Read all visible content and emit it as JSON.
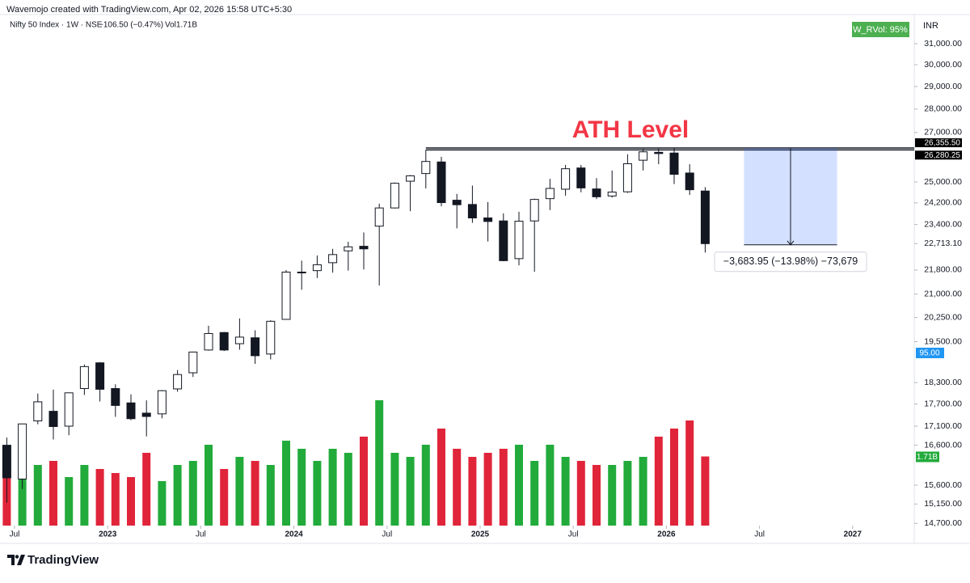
{
  "header": {
    "credit": "Wavemojo created with TradingView.com, Apr 02, 2026 15:58 UTC+5:30",
    "symbol": "Nifty 50 Index · 1W · NSE",
    "change": "−106.50 (−0.47%)",
    "volume": "Vol1.71B",
    "currency": "INR",
    "indicator": "W_RVol: 95%",
    "indicator_tag": "95.00",
    "volume_tag": "1.71B"
  },
  "footer": {
    "brand": "TradingView"
  },
  "chart_data": {
    "type": "candlestick",
    "log_scale": true,
    "up_color": "#ffffff",
    "down_color": "#131722",
    "wick_color": "#131722",
    "volume_up_color": "#22ab3b",
    "volume_down_color": "#e0253a",
    "x": [
      "2022-06",
      "2022-07",
      "2022-08",
      "2022-09",
      "2022-10",
      "2022-11",
      "2022-12",
      "2023-01",
      "2023-02",
      "2023-03",
      "2023-04",
      "2023-05",
      "2023-06",
      "2023-07",
      "2023-08",
      "2023-09",
      "2023-10",
      "2023-11",
      "2023-12",
      "2024-01",
      "2024-02",
      "2024-03",
      "2024-04",
      "2024-05",
      "2024-06",
      "2024-07",
      "2024-08",
      "2024-09",
      "2024-10",
      "2024-11",
      "2024-12",
      "2025-01",
      "2025-02",
      "2025-03",
      "2025-04",
      "2025-05",
      "2025-06",
      "2025-07",
      "2025-08",
      "2025-09",
      "2025-10",
      "2025-11",
      "2025-12",
      "2026-01",
      "2026-02",
      "2026-03"
    ],
    "open": [
      16600,
      15750,
      17240,
      17500,
      17100,
      18130,
      18870,
      18130,
      17730,
      17450,
      17430,
      18120,
      18580,
      19250,
      19780,
      19440,
      19620,
      19130,
      20190,
      21730,
      21780,
      22050,
      22460,
      22620,
      23340,
      24010,
      25030,
      25330,
      25790,
      24300,
      24140,
      23640,
      23530,
      22190,
      23530,
      24360,
      24720,
      25550,
      24730,
      24460,
      24620,
      25860,
      26180,
      26150,
      25350,
      24650
    ],
    "high": [
      16800,
      17170,
      17990,
      18100,
      18020,
      18820,
      18890,
      18250,
      17970,
      17800,
      18090,
      18660,
      19200,
      19990,
      19800,
      20220,
      19850,
      20160,
      21800,
      22120,
      22300,
      22530,
      22780,
      23110,
      24170,
      24980,
      25270,
      26280,
      26000,
      24540,
      24860,
      24230,
      23810,
      23870,
      24360,
      25120,
      25670,
      25670,
      25150,
      25450,
      26100,
      26320,
      26330,
      26355.5,
      25700,
      24800
    ],
    "low": [
      15180,
      15510,
      17150,
      16750,
      16860,
      17950,
      17770,
      17350,
      17260,
      16830,
      17310,
      18040,
      18460,
      19230,
      19220,
      19260,
      18840,
      18970,
      20180,
      21140,
      21530,
      21710,
      21780,
      21820,
      21280,
      23990,
      23890,
      24750,
      24070,
      23260,
      23460,
      22790,
      22100,
      21960,
      21740,
      23930,
      24470,
      24600,
      24340,
      24400,
      24580,
      25450,
      25700,
      24920,
      24500,
      22400
    ],
    "close": [
      15780,
      17160,
      17760,
      17090,
      18010,
      18760,
      18110,
      17660,
      17300,
      17360,
      18070,
      18530,
      19190,
      19750,
      19250,
      19640,
      19080,
      20130,
      21730,
      21730,
      21980,
      22330,
      22600,
      22530,
      24010,
      24950,
      25240,
      25810,
      24210,
      24130,
      23640,
      23510,
      22120,
      23520,
      24330,
      24750,
      25520,
      24770,
      24430,
      24610,
      25720,
      26200,
      26130,
      25300,
      24700,
      22713.1
    ],
    "volume": [
      1.4,
      1.3,
      1.5,
      1.6,
      1.2,
      1.5,
      1.4,
      1.3,
      1.2,
      1.8,
      1.1,
      1.5,
      1.6,
      2.0,
      1.4,
      1.7,
      1.6,
      1.5,
      2.1,
      1.9,
      1.6,
      1.9,
      1.8,
      2.2,
      3.1,
      1.8,
      1.7,
      2.0,
      2.4,
      1.9,
      1.7,
      1.8,
      1.9,
      2.0,
      1.6,
      2.0,
      1.7,
      1.6,
      1.5,
      1.5,
      1.6,
      1.7,
      2.2,
      2.4,
      2.6,
      1.71
    ],
    "volume_lim": [
      0,
      3.6
    ],
    "ylim": [
      14650,
      31550
    ],
    "yticks": [
      {
        "value": 14700,
        "label": "14,700.00"
      },
      {
        "value": 15150,
        "label": "15,150.00"
      },
      {
        "value": 15600,
        "label": "15,600.00"
      },
      {
        "value": 16600,
        "label": "16,600.00"
      },
      {
        "value": 17100,
        "label": "17,100.00"
      },
      {
        "value": 17700,
        "label": "17,700.00"
      },
      {
        "value": 18300,
        "label": "18,300.00"
      },
      {
        "value": 19500,
        "label": "19,500.00"
      },
      {
        "value": 20250,
        "label": "20,250.00"
      },
      {
        "value": 21000,
        "label": "21,000.00"
      },
      {
        "value": 21800,
        "label": "21,800.00"
      },
      {
        "value": 22713.1,
        "label": "22,713.10"
      },
      {
        "value": 23400,
        "label": "23,400.00"
      },
      {
        "value": 24200,
        "label": "24,200.00"
      },
      {
        "value": 25000,
        "label": "25,000.00"
      },
      {
        "value": 27000,
        "label": "27,000.00"
      },
      {
        "value": 28000,
        "label": "28,000.00"
      },
      {
        "value": 29000,
        "label": "29,000.00"
      },
      {
        "value": 30000,
        "label": "30,000.00"
      },
      {
        "value": 31000,
        "label": "31,000.00"
      }
    ],
    "xticks": [
      {
        "value": "2022-07",
        "label": "Jul"
      },
      {
        "value": "2023-01",
        "label": "2023"
      },
      {
        "value": "2023-07",
        "label": "Jul"
      },
      {
        "value": "2024-01",
        "label": "2024"
      },
      {
        "value": "2024-07",
        "label": "Jul"
      },
      {
        "value": "2025-01",
        "label": "2025"
      },
      {
        "value": "2025-07",
        "label": "Jul"
      },
      {
        "value": "2026-01",
        "label": "2026"
      },
      {
        "value": "2026-07",
        "label": "Jul"
      },
      {
        "value": "2027-01",
        "label": "2027"
      }
    ],
    "levels": [
      {
        "value": 26355.5,
        "label": "26,355.50"
      },
      {
        "value": 26280.25,
        "label": "26,280.25"
      }
    ],
    "levels_from": "2024-09",
    "annotation": "ATH Level",
    "measure": {
      "from": "2026-06",
      "to": "2026-12",
      "start": 26355.5,
      "end": 22671.55,
      "label": "−3,683.95 (−13.98%) −73,679"
    }
  }
}
